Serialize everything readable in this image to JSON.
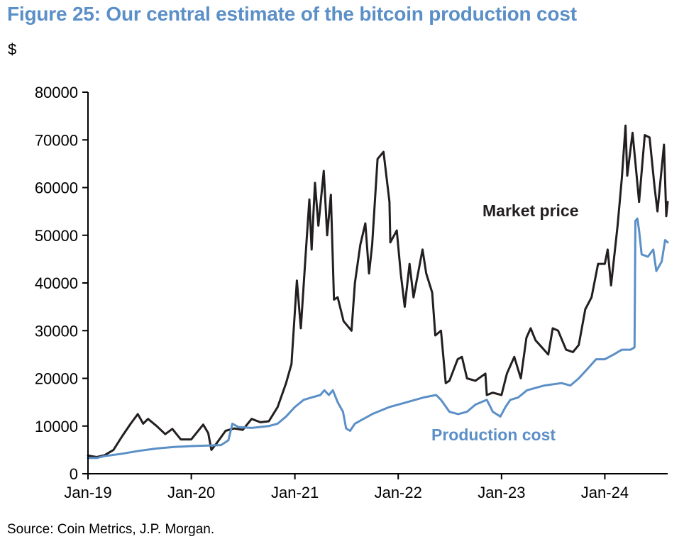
{
  "header": {
    "title": "Figure 25: Our central estimate of the bitcoin production cost",
    "unit": "$"
  },
  "footer": {
    "source": "Source: Coin Metrics, J.P. Morgan."
  },
  "colors": {
    "title": "#5b8fc7",
    "market_price": "#231f20",
    "production_cost": "#5b8fc7"
  },
  "chart_data": {
    "type": "line",
    "title": "Figure 25: Our central estimate of the bitcoin production cost",
    "xlabel": "",
    "ylabel": "$",
    "x_range": [
      "2019-01-01",
      "2024-08-10"
    ],
    "ylim": [
      0,
      80000
    ],
    "y_ticks": [
      0,
      10000,
      20000,
      30000,
      40000,
      50000,
      60000,
      70000,
      80000
    ],
    "x_ticks": [
      "Jan-19",
      "Jan-20",
      "Jan-21",
      "Jan-22",
      "Jan-23",
      "Jan-24"
    ],
    "x_tick_dates": [
      "2019-01-01",
      "2020-01-01",
      "2021-01-01",
      "2022-01-01",
      "2023-01-01",
      "2024-01-01"
    ],
    "grid": false,
    "legend": "none",
    "annotations": [
      {
        "text": "Market price",
        "series": "Market price"
      },
      {
        "text": "Production cost",
        "series": "Production cost"
      }
    ],
    "series": [
      {
        "name": "Market price",
        "color": "#231f20",
        "points": [
          [
            "2019-01-01",
            3800
          ],
          [
            "2019-02-01",
            3500
          ],
          [
            "2019-03-01",
            3900
          ],
          [
            "2019-04-01",
            5000
          ],
          [
            "2019-05-01",
            7800
          ],
          [
            "2019-06-01",
            10500
          ],
          [
            "2019-06-26",
            12500
          ],
          [
            "2019-07-15",
            10500
          ],
          [
            "2019-08-01",
            11500
          ],
          [
            "2019-09-01",
            10000
          ],
          [
            "2019-10-01",
            8300
          ],
          [
            "2019-10-26",
            9400
          ],
          [
            "2019-11-25",
            7200
          ],
          [
            "2019-12-20",
            7200
          ],
          [
            "2020-01-01",
            7200
          ],
          [
            "2020-02-12",
            10300
          ],
          [
            "2020-03-01",
            8500
          ],
          [
            "2020-03-12",
            5000
          ],
          [
            "2020-04-01",
            6500
          ],
          [
            "2020-05-01",
            9000
          ],
          [
            "2020-06-01",
            9500
          ],
          [
            "2020-07-01",
            9200
          ],
          [
            "2020-08-01",
            11500
          ],
          [
            "2020-09-01",
            10800
          ],
          [
            "2020-10-01",
            11000
          ],
          [
            "2020-11-01",
            14000
          ],
          [
            "2020-12-01",
            19000
          ],
          [
            "2020-12-20",
            23000
          ],
          [
            "2021-01-08",
            40500
          ],
          [
            "2021-01-22",
            30500
          ],
          [
            "2021-02-08",
            46000
          ],
          [
            "2021-02-21",
            57500
          ],
          [
            "2021-03-01",
            47000
          ],
          [
            "2021-03-13",
            61000
          ],
          [
            "2021-03-25",
            52000
          ],
          [
            "2021-04-13",
            63500
          ],
          [
            "2021-04-25",
            50000
          ],
          [
            "2021-05-08",
            58500
          ],
          [
            "2021-05-19",
            36500
          ],
          [
            "2021-06-01",
            37000
          ],
          [
            "2021-06-22",
            32000
          ],
          [
            "2021-07-20",
            30000
          ],
          [
            "2021-08-01",
            40000
          ],
          [
            "2021-08-20",
            48000
          ],
          [
            "2021-09-07",
            52500
          ],
          [
            "2021-09-20",
            42000
          ],
          [
            "2021-10-01",
            48000
          ],
          [
            "2021-10-20",
            66000
          ],
          [
            "2021-11-10",
            67500
          ],
          [
            "2021-12-01",
            57000
          ],
          [
            "2021-12-04",
            48500
          ],
          [
            "2021-12-27",
            51000
          ],
          [
            "2022-01-10",
            42000
          ],
          [
            "2022-01-24",
            35000
          ],
          [
            "2022-02-10",
            44000
          ],
          [
            "2022-02-24",
            37000
          ],
          [
            "2022-03-28",
            47000
          ],
          [
            "2022-04-10",
            42000
          ],
          [
            "2022-05-01",
            38000
          ],
          [
            "2022-05-12",
            29000
          ],
          [
            "2022-06-01",
            30000
          ],
          [
            "2022-06-18",
            19000
          ],
          [
            "2022-07-01",
            19500
          ],
          [
            "2022-07-30",
            24000
          ],
          [
            "2022-08-14",
            24500
          ],
          [
            "2022-09-01",
            20000
          ],
          [
            "2022-10-01",
            19500
          ],
          [
            "2022-11-05",
            21000
          ],
          [
            "2022-11-10",
            16500
          ],
          [
            "2022-12-01",
            17000
          ],
          [
            "2023-01-01",
            16500
          ],
          [
            "2023-01-20",
            21000
          ],
          [
            "2023-02-15",
            24500
          ],
          [
            "2023-03-10",
            20000
          ],
          [
            "2023-03-30",
            28500
          ],
          [
            "2023-04-14",
            30500
          ],
          [
            "2023-05-01",
            28000
          ],
          [
            "2023-06-15",
            25000
          ],
          [
            "2023-07-01",
            30500
          ],
          [
            "2023-07-20",
            30000
          ],
          [
            "2023-08-17",
            26000
          ],
          [
            "2023-09-10",
            25500
          ],
          [
            "2023-10-01",
            27000
          ],
          [
            "2023-10-24",
            34500
          ],
          [
            "2023-11-15",
            37000
          ],
          [
            "2023-12-08",
            44000
          ],
          [
            "2024-01-01",
            44000
          ],
          [
            "2024-01-11",
            47000
          ],
          [
            "2024-01-23",
            39500
          ],
          [
            "2024-02-15",
            52000
          ],
          [
            "2024-03-01",
            62000
          ],
          [
            "2024-03-14",
            73000
          ],
          [
            "2024-03-20",
            62500
          ],
          [
            "2024-04-08",
            71500
          ],
          [
            "2024-04-20",
            64000
          ],
          [
            "2024-05-01",
            57000
          ],
          [
            "2024-05-21",
            71000
          ],
          [
            "2024-06-07",
            70500
          ],
          [
            "2024-06-25",
            60000
          ],
          [
            "2024-07-05",
            55000
          ],
          [
            "2024-07-28",
            69000
          ],
          [
            "2024-08-05",
            54000
          ],
          [
            "2024-08-10",
            57000
          ]
        ]
      },
      {
        "name": "Production cost",
        "color": "#5b8fc7",
        "points": [
          [
            "2019-01-01",
            3300
          ],
          [
            "2019-02-01",
            3300
          ],
          [
            "2019-03-01",
            3700
          ],
          [
            "2019-05-01",
            4200
          ],
          [
            "2019-07-01",
            4800
          ],
          [
            "2019-09-01",
            5300
          ],
          [
            "2019-11-01",
            5600
          ],
          [
            "2020-01-01",
            5800
          ],
          [
            "2020-03-01",
            5900
          ],
          [
            "2020-04-15",
            6000
          ],
          [
            "2020-05-11",
            7000
          ],
          [
            "2020-05-25",
            10500
          ],
          [
            "2020-06-15",
            9800
          ],
          [
            "2020-08-01",
            9600
          ],
          [
            "2020-10-01",
            10000
          ],
          [
            "2020-11-01",
            10500
          ],
          [
            "2020-12-01",
            12000
          ],
          [
            "2021-01-01",
            14000
          ],
          [
            "2021-02-01",
            15500
          ],
          [
            "2021-03-01",
            16000
          ],
          [
            "2021-04-01",
            16500
          ],
          [
            "2021-04-15",
            17500
          ],
          [
            "2021-05-01",
            16500
          ],
          [
            "2021-05-15",
            17500
          ],
          [
            "2021-06-01",
            15000
          ],
          [
            "2021-06-20",
            13000
          ],
          [
            "2021-07-01",
            9500
          ],
          [
            "2021-07-15",
            9000
          ],
          [
            "2021-08-01",
            10500
          ],
          [
            "2021-10-01",
            12500
          ],
          [
            "2021-12-01",
            14000
          ],
          [
            "2022-02-01",
            15000
          ],
          [
            "2022-04-01",
            16000
          ],
          [
            "2022-05-15",
            16500
          ],
          [
            "2022-06-01",
            15500
          ],
          [
            "2022-07-01",
            13000
          ],
          [
            "2022-08-01",
            12500
          ],
          [
            "2022-09-01",
            13000
          ],
          [
            "2022-10-01",
            14500
          ],
          [
            "2022-11-10",
            15500
          ],
          [
            "2022-12-01",
            13000
          ],
          [
            "2022-12-28",
            12000
          ],
          [
            "2023-01-15",
            14000
          ],
          [
            "2023-02-01",
            15500
          ],
          [
            "2023-03-01",
            16000
          ],
          [
            "2023-04-01",
            17500
          ],
          [
            "2023-06-01",
            18500
          ],
          [
            "2023-08-01",
            19000
          ],
          [
            "2023-09-01",
            18500
          ],
          [
            "2023-10-01",
            20000
          ],
          [
            "2023-11-01",
            22000
          ],
          [
            "2023-12-01",
            24000
          ],
          [
            "2024-01-01",
            24000
          ],
          [
            "2024-02-01",
            25000
          ],
          [
            "2024-03-01",
            26000
          ],
          [
            "2024-04-01",
            26000
          ],
          [
            "2024-04-15",
            26500
          ],
          [
            "2024-04-18",
            53000
          ],
          [
            "2024-04-25",
            53500
          ],
          [
            "2024-05-01",
            51000
          ],
          [
            "2024-05-10",
            46000
          ],
          [
            "2024-06-01",
            45500
          ],
          [
            "2024-06-20",
            47000
          ],
          [
            "2024-07-01",
            42500
          ],
          [
            "2024-07-20",
            44500
          ],
          [
            "2024-08-01",
            49000
          ],
          [
            "2024-08-10",
            48500
          ]
        ]
      }
    ]
  }
}
